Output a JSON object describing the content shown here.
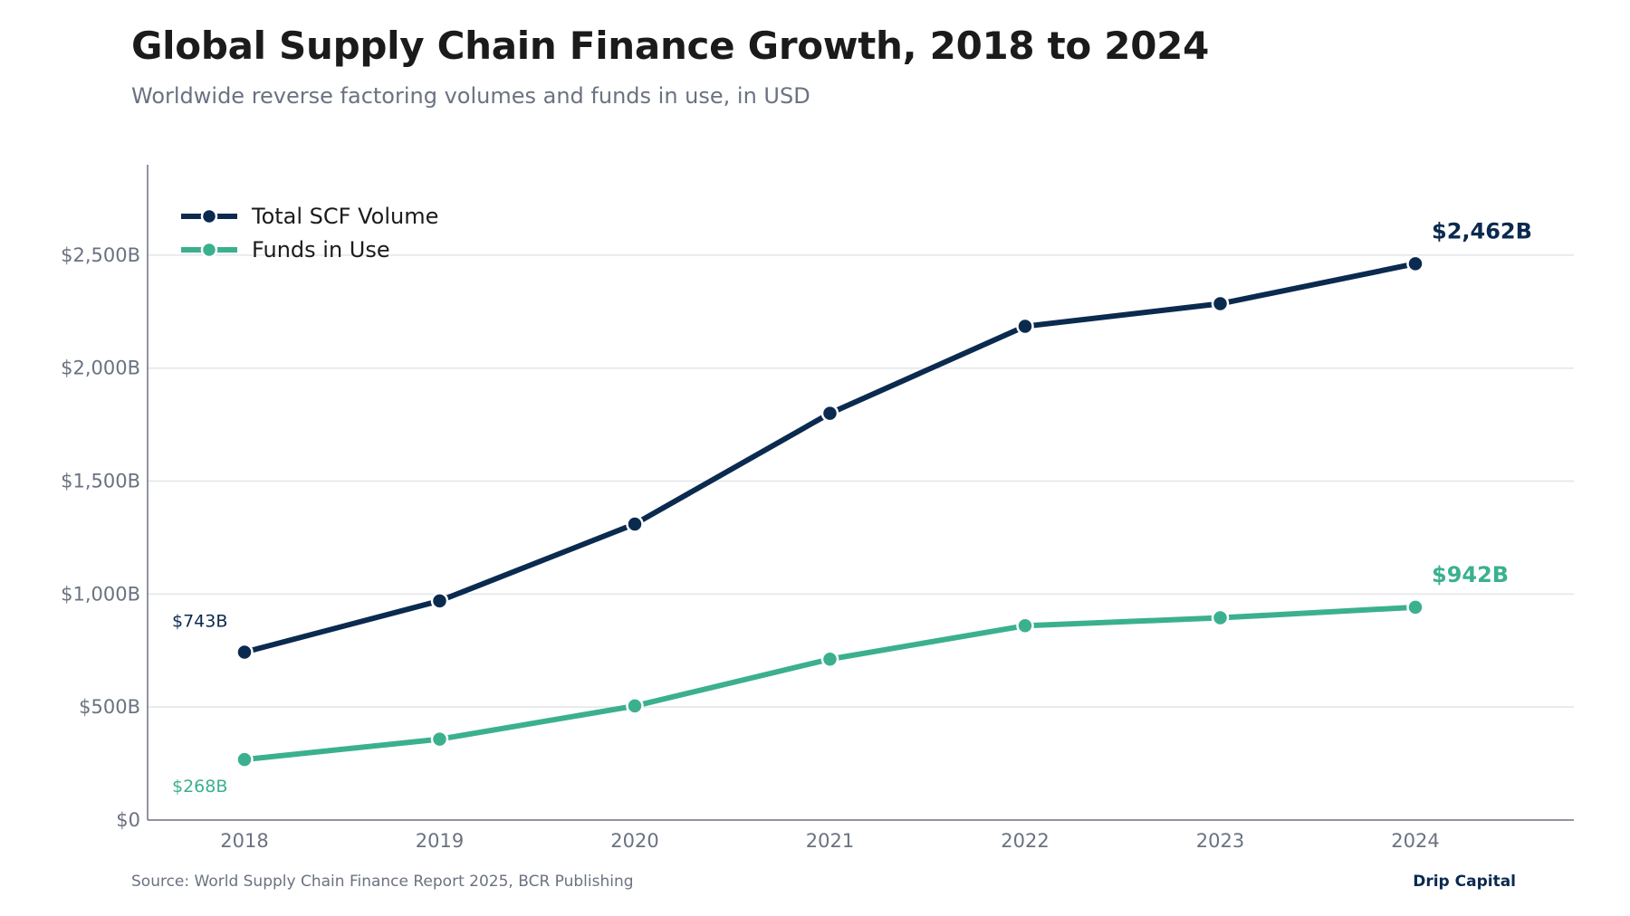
{
  "header": {
    "title": "Global Supply Chain Finance Growth, 2018 to 2024",
    "subtitle": "Worldwide reverse factoring volumes and funds in use, in USD"
  },
  "footer": {
    "source": "Source: World Supply Chain Finance Report 2025, BCR Publishing",
    "brand": "Drip Capital"
  },
  "colors": {
    "series_total": "#0b2a4f",
    "series_funds": "#3bb08f",
    "axis": "#6b7280",
    "grid": "#e3e5e8"
  },
  "chart_data": {
    "type": "line",
    "title": "Global Supply Chain Finance Growth, 2018 to 2024",
    "subtitle": "Worldwide reverse factoring volumes and funds in use, in USD",
    "xlabel": "",
    "ylabel": "",
    "categories": [
      "2018",
      "2019",
      "2020",
      "2021",
      "2022",
      "2023",
      "2024"
    ],
    "ylim": [
      0,
      2900
    ],
    "yticks": [
      0,
      500,
      1000,
      1500,
      2000,
      2500
    ],
    "ytick_labels": [
      "$0",
      "$500B",
      "$1,000B",
      "$1,500B",
      "$2,000B",
      "$2,500B"
    ],
    "grid": true,
    "legend": "top-left",
    "series": [
      {
        "name": "Total SCF Volume",
        "color": "#0b2a4f",
        "values": [
          743,
          970,
          1310,
          1800,
          2185,
          2285,
          2462
        ],
        "start_label": "$743B",
        "end_label": "$2,462B"
      },
      {
        "name": "Funds in Use",
        "color": "#3bb08f",
        "values": [
          268,
          358,
          505,
          712,
          860,
          895,
          942
        ],
        "start_label": "$268B",
        "end_label": "$942B"
      }
    ]
  }
}
